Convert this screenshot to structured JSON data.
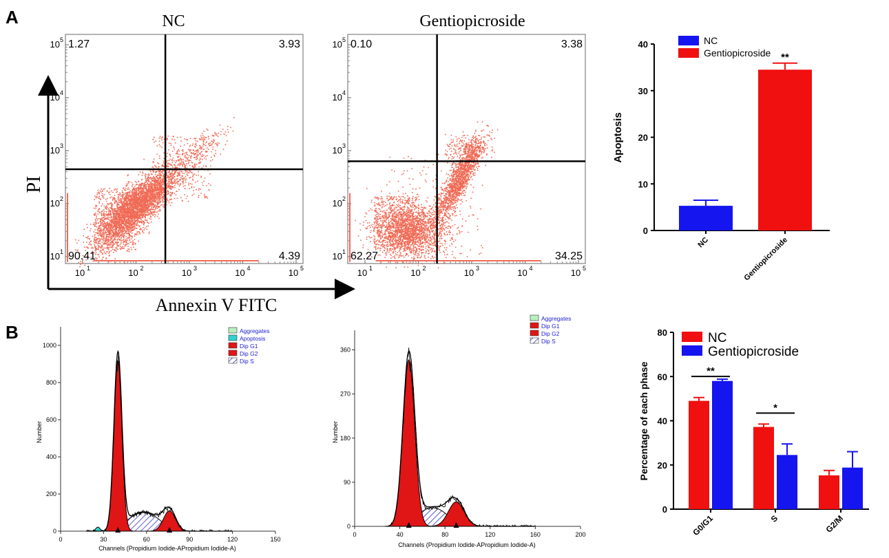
{
  "colors": {
    "nc_blue": "#1515f0",
    "gentio_red": "#f01010",
    "dot_color": "#f06a55",
    "hist_red": "#e01515",
    "hist_cyan": "#2fd0d0",
    "hist_green": "#b8f0c0",
    "hatch_blue": "#3030c0",
    "legend_text": "#2020d0"
  },
  "panel_labels": {
    "a": "A",
    "b": "B"
  },
  "flow": {
    "y_axis_label": "PI",
    "x_axis_label": "Annexin V FITC",
    "tick_labels": [
      "10",
      "10",
      "10",
      "10",
      "10"
    ],
    "tick_exponents": [
      "1",
      "2",
      "3",
      "4",
      "5"
    ],
    "plots": [
      {
        "title": "NC",
        "quadrants": {
          "ul": "1.27",
          "ur": "3.93",
          "ll": "90.41",
          "lr": "4.39"
        }
      },
      {
        "title": "Gentiopicroside",
        "quadrants": {
          "ul": "0.10",
          "ur": "3.38",
          "ll": "62.27",
          "lr": "34.25"
        }
      }
    ]
  },
  "histograms": [
    {
      "legend": [
        {
          "label": "Aggregates",
          "swatch": "green"
        },
        {
          "label": "Apoptosis",
          "swatch": "cyan"
        },
        {
          "label": "Dip G1",
          "swatch": "red"
        },
        {
          "label": "Dip G2",
          "swatch": "red"
        },
        {
          "label": "Dip S",
          "swatch": "hatch"
        }
      ],
      "y_label": "Number",
      "x_label": "Channels (Propidium Iodide-APropidium Iodide-A)",
      "yticks": [
        "0",
        "200",
        "400",
        "600",
        "800",
        "1000"
      ],
      "xticks": [
        "0",
        "30",
        "60",
        "90",
        "120",
        "150"
      ]
    },
    {
      "legend": [
        {
          "label": "Aggregates",
          "swatch": "green"
        },
        {
          "label": "Dip G1",
          "swatch": "red"
        },
        {
          "label": "Dip G2",
          "swatch": "red"
        },
        {
          "label": "Dip S",
          "swatch": "hatch"
        }
      ],
      "y_label": "Number",
      "x_label": "Channels (Propidium Iodide-APropidium Iodide-A)",
      "yticks": [
        "0",
        "90",
        "180",
        "270",
        "360"
      ],
      "xticks": [
        "0",
        "40",
        "80",
        "120",
        "160",
        "200"
      ]
    }
  ],
  "chart_data": [
    {
      "type": "scatter",
      "title": "NC",
      "xlabel": "Annexin V FITC",
      "ylabel": "PI",
      "x_scale": "log",
      "y_scale": "log",
      "xlim": [
        1,
        5
      ],
      "ylim": [
        1,
        5
      ],
      "gate_x": 2.55,
      "gate_y": 2.65,
      "quadrants": {
        "upper_left": 1.27,
        "upper_right": 3.93,
        "lower_left": 90.41,
        "lower_right": 4.39
      }
    },
    {
      "type": "scatter",
      "title": "Gentiopicroside",
      "xlabel": "Annexin V FITC",
      "ylabel": "PI",
      "x_scale": "log",
      "y_scale": "log",
      "xlim": [
        1,
        5
      ],
      "ylim": [
        1,
        5
      ],
      "gate_x": 2.35,
      "gate_y": 2.8,
      "quadrants": {
        "upper_left": 0.1,
        "upper_right": 3.38,
        "lower_left": 62.27,
        "lower_right": 34.25
      }
    },
    {
      "type": "bar",
      "categories": [
        "NC",
        "Gentiopicroside"
      ],
      "values": [
        5.3,
        34.5
      ],
      "errors": [
        1.2,
        1.4
      ],
      "colors": [
        "#1515f0",
        "#f01010"
      ],
      "legend": [
        "NC",
        "Gentiopicroside"
      ],
      "legend_position": "top-left",
      "ylabel": "Apoptosis",
      "xlabel": "",
      "ylim": [
        0,
        40
      ],
      "yticks": [
        "0",
        "10",
        "20",
        "30",
        "40"
      ],
      "annotations": [
        {
          "category": "Gentiopicroside",
          "text": "**"
        }
      ]
    },
    {
      "type": "area",
      "title": "",
      "xlabel": "Channels (Propidium Iodide-APropidium Iodide-A)",
      "ylabel": "Number",
      "xlim": [
        0,
        150
      ],
      "ylim": [
        0,
        1100
      ],
      "peaks": {
        "G1": [
          40,
          920
        ],
        "G2": [
          76,
          110
        ]
      },
      "markers_x": [
        40,
        76
      ]
    },
    {
      "type": "area",
      "title": "",
      "xlabel": "Channels (Propidium Iodide-APropidium Iodide-A)",
      "ylabel": "Number",
      "xlim": [
        0,
        200
      ],
      "ylim": [
        0,
        400
      ],
      "peaks": {
        "G1": [
          48,
          340
        ],
        "G2": [
          90,
          50
        ]
      },
      "markers_x": [
        48,
        90
      ]
    },
    {
      "type": "bar",
      "categories": [
        "G0/G1",
        "S",
        "G2/M"
      ],
      "series": [
        {
          "name": "NC",
          "values": [
            49.0,
            37.2,
            15.3
          ],
          "errors": [
            1.5,
            1.3,
            2.2
          ],
          "color": "#f01010"
        },
        {
          "name": "Gentiopicroside",
          "values": [
            58.0,
            24.5,
            18.8
          ],
          "errors": [
            0.8,
            5.0,
            7.2
          ],
          "color": "#1515f0"
        }
      ],
      "ylabel": "Percentage of each phase",
      "xlabel": "",
      "ylim": [
        0,
        80
      ],
      "yticks": [
        "0",
        "20",
        "40",
        "60",
        "80"
      ],
      "legend_position": "top-left",
      "annotations": [
        {
          "category": "G0/G1",
          "text": "**"
        },
        {
          "category": "S",
          "text": "*"
        }
      ]
    }
  ]
}
